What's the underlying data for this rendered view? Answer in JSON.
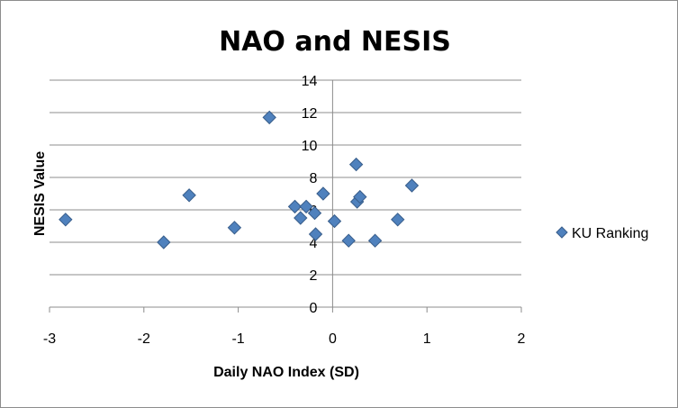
{
  "chart_data": {
    "type": "scatter",
    "title": "NAO and NESIS",
    "xlabel": "Daily NAO Index (SD)",
    "ylabel": "NESIS Value",
    "xlim": [
      -3,
      2
    ],
    "ylim": [
      0,
      14
    ],
    "xticks": [
      -3,
      -2,
      -1,
      0,
      1,
      2
    ],
    "yticks": [
      0,
      2,
      4,
      6,
      8,
      10,
      12,
      14
    ],
    "grid": "horizontal",
    "legend_position": "right",
    "series": [
      {
        "name": "KU Ranking",
        "color": "#4F81BD",
        "marker": "diamond",
        "points": [
          {
            "x": -2.83,
            "y": 5.4
          },
          {
            "x": -1.79,
            "y": 4.0
          },
          {
            "x": -1.52,
            "y": 6.9
          },
          {
            "x": -1.04,
            "y": 4.9
          },
          {
            "x": -0.67,
            "y": 11.7
          },
          {
            "x": -0.4,
            "y": 6.2
          },
          {
            "x": -0.34,
            "y": 5.5
          },
          {
            "x": -0.28,
            "y": 6.2
          },
          {
            "x": -0.19,
            "y": 5.8
          },
          {
            "x": -0.18,
            "y": 4.5
          },
          {
            "x": -0.1,
            "y": 7.0
          },
          {
            "x": 0.02,
            "y": 5.3
          },
          {
            "x": 0.17,
            "y": 4.1
          },
          {
            "x": 0.25,
            "y": 8.8
          },
          {
            "x": 0.26,
            "y": 6.5
          },
          {
            "x": 0.29,
            "y": 6.8
          },
          {
            "x": 0.45,
            "y": 4.1
          },
          {
            "x": 0.69,
            "y": 5.4
          },
          {
            "x": 0.84,
            "y": 7.5
          }
        ]
      }
    ]
  }
}
